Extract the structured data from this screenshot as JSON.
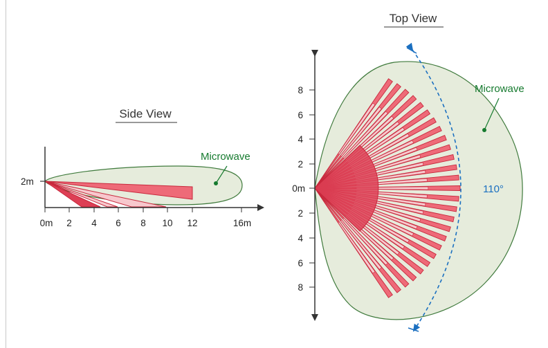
{
  "colors": {
    "zone_fill": "#e6ecdc",
    "zone_stroke": "#3f7a3c",
    "label_green": "#157a2e",
    "beam_fill": "#ee6a78",
    "beam_light": "#f7c8cd",
    "beam_stroke": "#c8283c",
    "angle_blue": "#1a6fc0",
    "axis": "#333333"
  },
  "side_view": {
    "title": "Side View",
    "y_label": "2m",
    "x_ticks": [
      "0m",
      "2",
      "4",
      "6",
      "8",
      "10",
      "12",
      "16m"
    ],
    "microwave_label": "Microwave"
  },
  "top_view": {
    "title": "Top View",
    "y_ticks": [
      "8",
      "6",
      "4",
      "2",
      "0m",
      "2",
      "4",
      "6",
      "8"
    ],
    "microwave_label": "Microwave",
    "angle_label": "110°"
  }
}
